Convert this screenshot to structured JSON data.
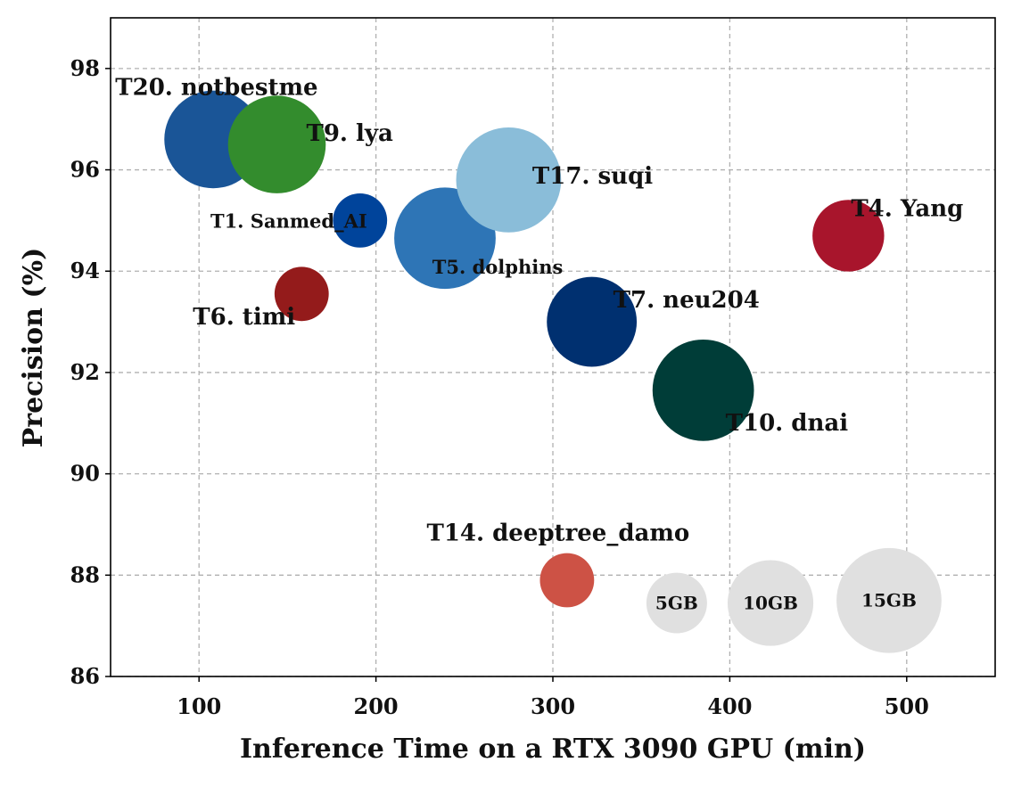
{
  "chart_data": {
    "type": "scatter",
    "xlabel": "Inference Time on a RTX 3090 GPU (min)",
    "ylabel": "Precision (%)",
    "xlim": [
      50,
      550
    ],
    "ylim": [
      86,
      99
    ],
    "xticks": [
      100,
      200,
      300,
      400,
      500
    ],
    "yticks": [
      86,
      88,
      90,
      92,
      94,
      96,
      98
    ],
    "grid": true,
    "size_unit": "GB",
    "points": [
      {
        "label": "T20. notbestme",
        "x": 108,
        "y": 96.6,
        "size": 13,
        "color": "#1a5597",
        "label_pos": "top-left",
        "label_size": "large"
      },
      {
        "label": "T9. lya",
        "x": 144,
        "y": 96.5,
        "size": 13,
        "color": "#338c2d",
        "label_pos": "right",
        "label_size": "large"
      },
      {
        "label": "T1. Sanmed_AI",
        "x": 191,
        "y": 95.0,
        "size": 4,
        "color": "#00449b",
        "label_pos": "left",
        "label_size": "small"
      },
      {
        "label": "T5. dolphins",
        "x": 239,
        "y": 94.65,
        "size": 14,
        "color": "#2e75b6",
        "label_pos": "below-right",
        "label_size": "small"
      },
      {
        "label": "T17. suqi",
        "x": 275,
        "y": 95.8,
        "size": 15,
        "color": "#8abdd9",
        "label_pos": "right",
        "label_size": "large"
      },
      {
        "label": "T4. Yang",
        "x": 467,
        "y": 94.7,
        "size": 7,
        "color": "#a8152c",
        "label_pos": "top-right",
        "label_size": "large"
      },
      {
        "label": "T6. timi",
        "x": 158,
        "y": 93.55,
        "size": 4,
        "color": "#941b1b",
        "label_pos": "below-left",
        "label_size": "large"
      },
      {
        "label": "T7. neu204",
        "x": 322,
        "y": 93.0,
        "size": 11,
        "color": "#003070",
        "label_pos": "top-right",
        "label_size": "large"
      },
      {
        "label": "T10. dnai",
        "x": 385,
        "y": 91.65,
        "size": 14,
        "color": "#003d38",
        "label_pos": "below-right",
        "label_size": "large"
      },
      {
        "label": "T14. deeptree_damo",
        "x": 308,
        "y": 87.9,
        "size": 4,
        "color": "#cd5245",
        "label_pos": "top",
        "label_size": "large"
      }
    ],
    "size_legend": [
      {
        "label": "5GB",
        "x": 370,
        "y": 87.45,
        "size": 5
      },
      {
        "label": "10GB",
        "x": 423,
        "y": 87.45,
        "size": 10
      },
      {
        "label": "15GB",
        "x": 490,
        "y": 87.5,
        "size": 15
      }
    ],
    "legend_color": "#e0e0e0"
  }
}
